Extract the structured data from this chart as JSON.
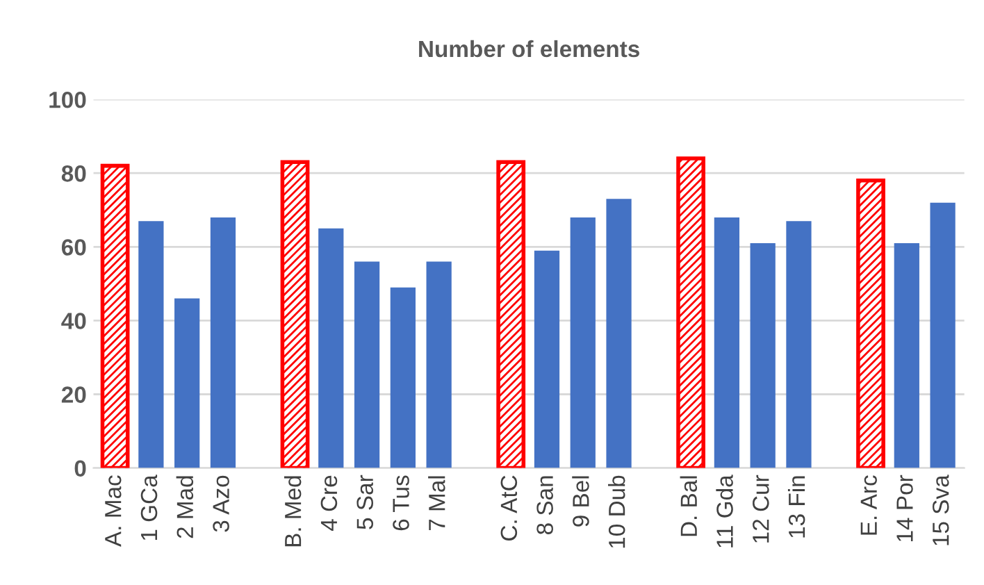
{
  "chart_data": {
    "type": "bar",
    "title": "Number of elements",
    "categories": [
      "A. Mac",
      "1 GCa",
      "2 Mad",
      "3 Azo",
      null,
      "B. Med",
      "4 Cre",
      "5 Sar",
      "6 Tus",
      "7 Mal",
      null,
      "C. AtC",
      "8 San",
      "9 Bel",
      "10 Dub",
      null,
      "D. Bal",
      "11 Gda",
      "12 Cur",
      "13 Fin",
      null,
      "E. Arc",
      "14 Por",
      "15 Sva"
    ],
    "values": [
      82,
      67,
      46,
      68,
      null,
      83,
      65,
      56,
      49,
      56,
      null,
      83,
      59,
      68,
      73,
      null,
      84,
      68,
      61,
      67,
      null,
      78,
      61,
      72
    ],
    "colors": [
      "#ff0000",
      "#4472c4",
      "#4472c4",
      "#4472c4",
      null,
      "#ff0000",
      "#4472c4",
      "#4472c4",
      "#4472c4",
      "#4472c4",
      null,
      "#ff0000",
      "#4472c4",
      "#4472c4",
      "#4472c4",
      null,
      "#ff0000",
      "#4472c4",
      "#4472c4",
      "#4472c4",
      null,
      "#ff0000",
      "#4472c4",
      "#4472c4"
    ],
    "ylim": [
      0,
      100
    ],
    "yticks": [
      0,
      20,
      40,
      60,
      80,
      100
    ],
    "grid": "y"
  }
}
